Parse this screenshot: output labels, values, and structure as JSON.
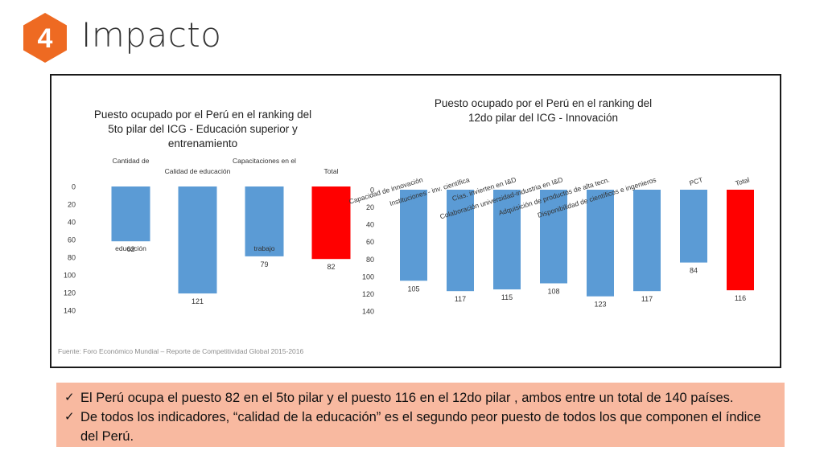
{
  "header": {
    "step_number": "4",
    "title": "Impacto"
  },
  "colors": {
    "badge": "#ee6a22",
    "bar": "#5b9bd5",
    "highlight": "#ff0000"
  },
  "chart_data": [
    {
      "type": "bar",
      "title_lines": [
        "Puesto ocupado por el Perú en el ranking del",
        "5to pilar del ICG - Educación superior y",
        "entrenamiento"
      ],
      "categories": [
        "Cantidad de educación",
        "Calidad de educación",
        "Capacitaciones en el trabajo",
        "Total"
      ],
      "category_label_lines": [
        [
          "Cantidad de",
          "educación"
        ],
        [
          "Calidad de educación"
        ],
        [
          "Capacitaciones en el",
          "trabajo"
        ],
        [
          "Total"
        ]
      ],
      "values": [
        62,
        121,
        79,
        82
      ],
      "highlight_index": 3,
      "ylim": [
        0,
        140
      ],
      "y_inverted": true,
      "yticks": [
        0,
        20,
        40,
        60,
        80,
        100,
        120,
        140
      ],
      "data_labels": true
    },
    {
      "type": "bar",
      "title_lines": [
        "Puesto ocupado por el Perú en el ranking del",
        "12do pilar del ICG - Innovación"
      ],
      "categories": [
        "Capacidad de innovación",
        "Instituciones - inv. científica",
        "Cías. invierten en I&D",
        "Colaboración universidad-industria en I&D",
        "Adquisición de productos de alta tecn.",
        "Disponibilidad de científicos e ingenieros",
        "PCT",
        "Total"
      ],
      "values": [
        105,
        117,
        115,
        108,
        123,
        117,
        84,
        116
      ],
      "highlight_index": 7,
      "ylim": [
        0,
        140
      ],
      "y_inverted": true,
      "yticks": [
        0,
        20,
        40,
        60,
        80,
        100,
        120,
        140
      ],
      "data_labels": true
    }
  ],
  "source": "Fuente: Foro Económico Mundial – Reporte de Competitividad Global 2015-2016",
  "bullets": [
    {
      "icon": "check-icon",
      "text": "El Perú ocupa el puesto 82 en el 5to pilar y el puesto 116 en el 12do pilar , ambos entre un total de 140 países."
    },
    {
      "icon": "check-icon",
      "text": "De todos los indicadores, “calidad de la educación” es el segundo peor puesto de todos los que componen el índice del Perú."
    }
  ]
}
